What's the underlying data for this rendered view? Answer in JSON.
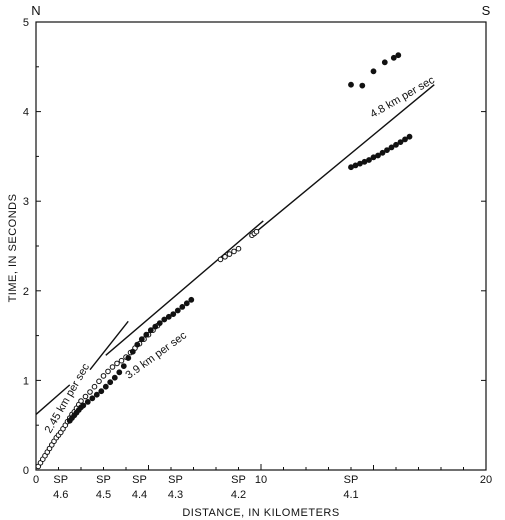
{
  "chart_data": {
    "type": "scatter",
    "title": "",
    "corner_labels": {
      "left": "N",
      "right": "S"
    },
    "xlabel": "DISTANCE, IN KILOMETERS",
    "ylabel": "TIME, IN SECONDS",
    "xlim": [
      0,
      20
    ],
    "ylim": [
      0,
      5
    ],
    "x_ticks": [
      0,
      10,
      20
    ],
    "y_ticks": [
      0,
      1,
      2,
      3,
      4,
      5
    ],
    "grid": false,
    "shot_points": [
      {
        "label": "SP",
        "sub": "4.6",
        "x": 1.1
      },
      {
        "label": "SP",
        "sub": "4.5",
        "x": 3.0
      },
      {
        "label": "SP",
        "sub": "4.4",
        "x": 4.6
      },
      {
        "label": "SP",
        "sub": "4.3",
        "x": 6.2
      },
      {
        "label": "SP",
        "sub": "4.2",
        "x": 9.0
      },
      {
        "label": "SP",
        "sub": "4.1",
        "x": 14.0
      }
    ],
    "fit_lines": [
      {
        "label": "2.45 km per sec",
        "x": [
          0,
          1.5
        ],
        "y": [
          0.62,
          0.95
        ]
      },
      {
        "label": "3.9 km per sec",
        "x": [
          3.1,
          10.1
        ],
        "y": [
          1.28,
          2.78
        ]
      },
      {
        "label": "",
        "x": [
          2.4,
          4.1
        ],
        "y": [
          1.12,
          1.66
        ]
      },
      {
        "label": "4.8 km per sec",
        "x": [
          9.5,
          17.7
        ],
        "y": [
          2.6,
          4.3
        ]
      }
    ],
    "series": [
      {
        "marker": "open",
        "x": [
          0.1,
          0.2,
          0.3,
          0.4,
          0.5,
          0.6,
          0.7,
          0.8,
          0.9,
          1.0,
          1.1,
          1.2,
          1.3,
          1.4,
          1.5,
          1.6,
          1.7,
          1.8,
          1.9,
          2.0,
          2.2,
          2.4,
          2.6,
          2.8,
          3.0,
          3.2,
          3.4,
          3.6,
          3.8,
          4.0,
          4.2,
          4.4,
          4.6,
          4.8,
          5.0,
          5.2,
          5.4,
          8.2,
          8.4,
          8.6,
          8.8,
          9.0,
          9.6,
          9.7,
          9.8
        ],
        "y": [
          0.04,
          0.08,
          0.12,
          0.16,
          0.2,
          0.24,
          0.28,
          0.32,
          0.36,
          0.39,
          0.42,
          0.46,
          0.5,
          0.54,
          0.58,
          0.62,
          0.65,
          0.69,
          0.73,
          0.77,
          0.82,
          0.87,
          0.93,
          0.99,
          1.05,
          1.1,
          1.15,
          1.19,
          1.22,
          1.26,
          1.31,
          1.36,
          1.41,
          1.46,
          1.51,
          1.56,
          1.61,
          2.35,
          2.38,
          2.41,
          2.44,
          2.47,
          2.62,
          2.64,
          2.66
        ]
      },
      {
        "marker": "filled",
        "x": [
          1.5,
          1.6,
          1.7,
          1.8,
          1.9,
          2.0,
          2.1,
          2.3,
          2.5,
          2.7,
          2.9,
          3.1,
          3.3,
          3.5,
          3.7,
          3.9,
          4.1,
          4.3,
          4.5,
          4.7,
          4.9,
          5.1,
          5.3,
          5.5,
          5.7,
          5.9,
          6.1,
          6.3,
          6.5,
          6.7,
          6.9,
          14.0,
          14.2,
          14.4,
          14.6,
          14.8,
          15.0,
          15.2,
          15.4,
          15.6,
          15.8,
          16.0,
          16.2,
          16.4,
          16.6,
          14.0,
          14.5,
          15.0,
          15.5,
          15.9,
          16.1
        ],
        "y": [
          0.55,
          0.58,
          0.61,
          0.64,
          0.67,
          0.7,
          0.72,
          0.76,
          0.8,
          0.84,
          0.88,
          0.93,
          0.98,
          1.03,
          1.09,
          1.16,
          1.25,
          1.32,
          1.4,
          1.46,
          1.51,
          1.56,
          1.6,
          1.64,
          1.68,
          1.71,
          1.74,
          1.78,
          1.82,
          1.86,
          1.9,
          3.38,
          3.4,
          3.42,
          3.44,
          3.46,
          3.49,
          3.51,
          3.54,
          3.57,
          3.6,
          3.63,
          3.66,
          3.69,
          3.72,
          4.3,
          4.29,
          4.45,
          4.55,
          4.6,
          4.63
        ]
      }
    ]
  }
}
